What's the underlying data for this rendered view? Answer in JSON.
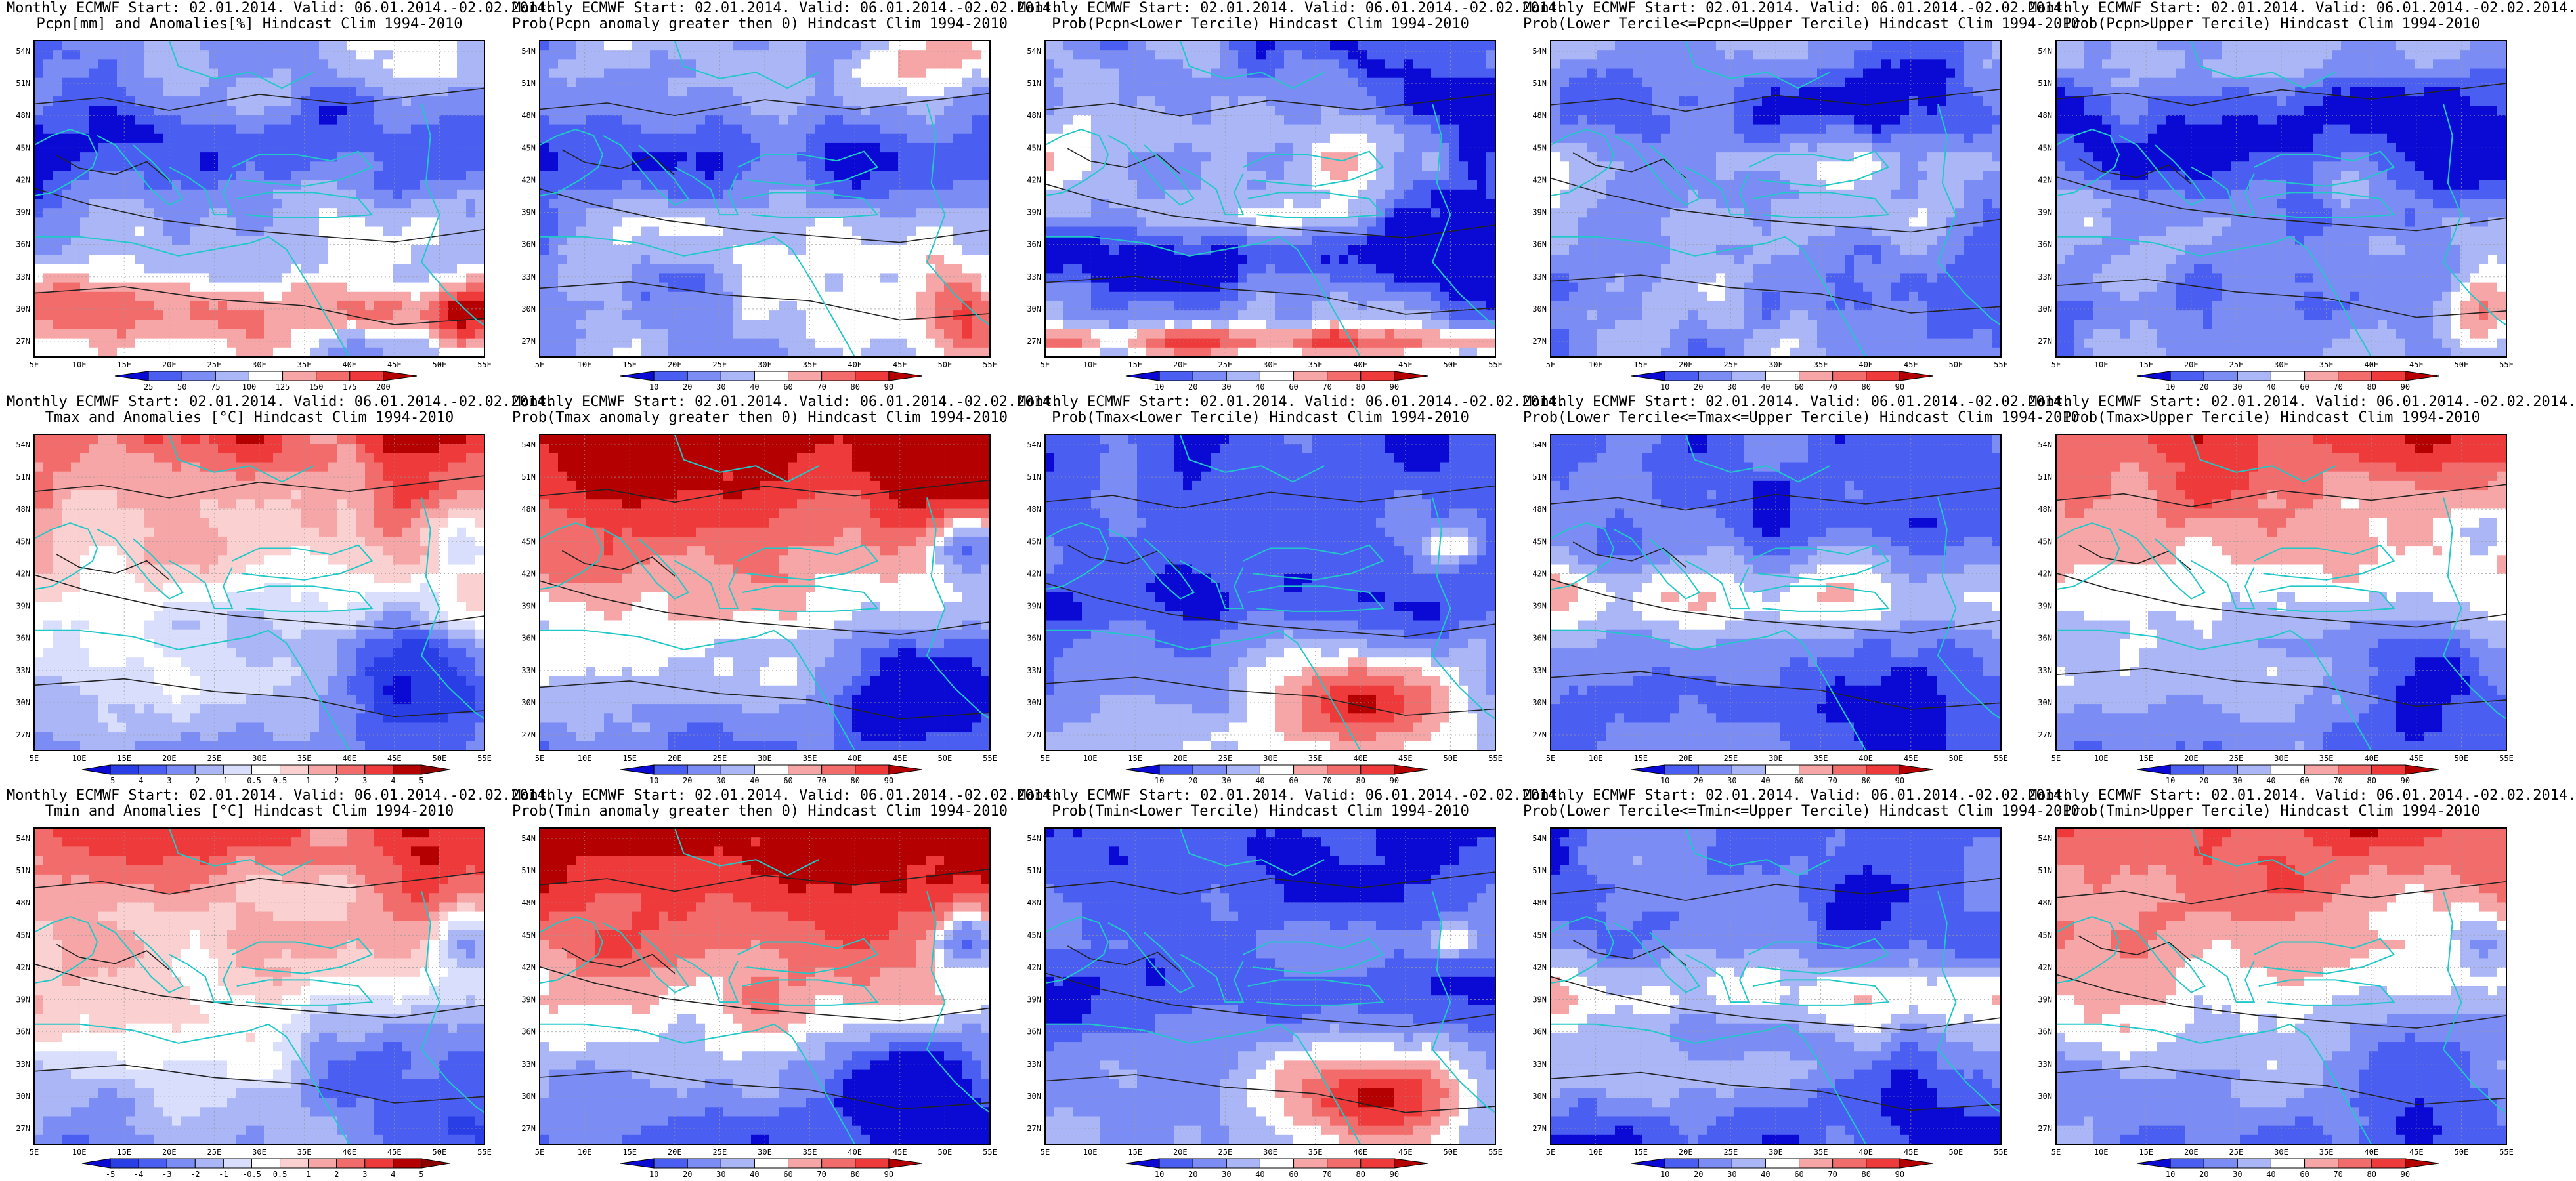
{
  "lat_labels": [
    "54N",
    "51N",
    "48N",
    "45N",
    "42N",
    "39N",
    "36N",
    "33N",
    "30N",
    "27N"
  ],
  "lon_labels": [
    "5E",
    "10E",
    "15E",
    "20E",
    "25E",
    "30E",
    "35E",
    "40E",
    "45E",
    "50E",
    "55E"
  ],
  "colors": {
    "blue_dark": "#0a0ad4",
    "blue_mid": "#4b5ef2",
    "blue_light": "#aab6f6",
    "white": "#ffffff",
    "red_light": "#f6a6a6",
    "red_mid": "#ee3a3a",
    "red_dark": "#b40000",
    "coast": "#22c8c8",
    "contour": "#222222"
  },
  "colorbars": {
    "pcpn_anom": [
      "25",
      "50",
      "75",
      "100",
      "125",
      "150",
      "175",
      "200"
    ],
    "prob": [
      "10",
      "20",
      "30",
      "40",
      "60",
      "70",
      "80",
      "90"
    ],
    "temp_anom": [
      "-5",
      "-4",
      "-3",
      "-2",
      "-1",
      "-0.5",
      "0.5",
      "1",
      "2",
      "3",
      "4",
      "5"
    ]
  },
  "panels": [
    {
      "title1": "Monthly ECMWF Start: 02.01.2014. Valid: 06.01.2014.-02.02.2014.",
      "title2": "Pcpn[mm] and Anomalies[%] Hindcast Clim 1994-2010",
      "colorbar": "pcpn_anom",
      "pattern": "pcpn_anom"
    },
    {
      "title1": "Monthly ECMWF Start: 02.01.2014. Valid: 06.01.2014.-02.02.2014.",
      "title2": "Prob(Pcpn anomaly greater then 0) Hindcast Clim 1994-2010",
      "colorbar": "prob",
      "pattern": "pcpn_pos"
    },
    {
      "title1": "Monthly ECMWF Start: 02.01.2014. Valid: 06.01.2014.-02.02.2014.",
      "title2": "Prob(Pcpn<Lower Tercile) Hindcast Clim 1994-2010",
      "colorbar": "prob",
      "pattern": "pcpn_low"
    },
    {
      "title1": "Monthly ECMWF Start: 02.01.2014. Valid: 06.01.2014.-02.02.2014.",
      "title2": "Prob(Lower Tercile<=Pcpn<=Upper Tercile) Hindcast Clim 1994-2010",
      "colorbar": "prob",
      "pattern": "pcpn_mid"
    },
    {
      "title1": "Monthly ECMWF Start: 02.01.2014. Valid: 06.01.2014.-02.02.2014.",
      "title2": "Prob(Pcpn>Upper Tercile) Hindcast Clim 1994-2010",
      "colorbar": "prob",
      "pattern": "pcpn_up"
    },
    {
      "title1": "Monthly ECMWF Start: 02.01.2014. Valid: 06.01.2014.-02.02.2014.",
      "title2": "Tmax and Anomalies [°C] Hindcast Clim 1994-2010",
      "colorbar": "temp_anom",
      "pattern": "warm_north"
    },
    {
      "title1": "Monthly ECMWF Start: 02.01.2014. Valid: 06.01.2014.-02.02.2014.",
      "title2": "Prob(Tmax anomaly greater then 0) Hindcast Clim 1994-2010",
      "colorbar": "prob",
      "pattern": "hot_north"
    },
    {
      "title1": "Monthly ECMWF Start: 02.01.2014. Valid: 06.01.2014.-02.02.2014.",
      "title2": "Prob(Tmax<Lower Tercile) Hindcast Clim 1994-2010",
      "colorbar": "prob",
      "pattern": "cold_north"
    },
    {
      "title1": "Monthly ECMWF Start: 02.01.2014. Valid: 06.01.2014.-02.02.2014.",
      "title2": "Prob(Lower Tercile<=Tmax<=Upper Tercile) Hindcast Clim 1994-2010",
      "colorbar": "prob",
      "pattern": "mid_band"
    },
    {
      "title1": "Monthly ECMWF Start: 02.01.2014. Valid: 06.01.2014.-02.02.2014.",
      "title2": "Prob(Tmax>Upper Tercile) Hindcast Clim 1994-2010",
      "colorbar": "prob",
      "pattern": "warm_north"
    },
    {
      "title1": "Monthly ECMWF Start: 02.01.2014. Valid: 06.01.2014.-02.02.2014.",
      "title2": "Tmin and Anomalies [°C] Hindcast Clim 1994-2010",
      "colorbar": "temp_anom",
      "pattern": "warm_north"
    },
    {
      "title1": "Monthly ECMWF Start: 02.01.2014. Valid: 06.01.2014.-02.02.2014.",
      "title2": "Prob(Tmin anomaly greater then 0) Hindcast Clim 1994-2010",
      "colorbar": "prob",
      "pattern": "hot_north"
    },
    {
      "title1": "Monthly ECMWF Start: 02.01.2014. Valid: 06.01.2014.-02.02.2014.",
      "title2": "Prob(Tmin<Lower Tercile) Hindcast Clim 1994-2010",
      "colorbar": "prob",
      "pattern": "cold_north"
    },
    {
      "title1": "Monthly ECMWF Start: 02.01.2014. Valid: 06.01.2014.-02.02.2014.",
      "title2": "Prob(Lower Tercile<=Tmin<=Upper Tercile) Hindcast Clim 1994-2010",
      "colorbar": "prob",
      "pattern": "mid_band"
    },
    {
      "title1": "Monthly ECMWF Start: 02.01.2014. Valid: 06.01.2014.-02.02.2014.",
      "title2": "Prob(Tmin>Upper Tercile) Hindcast Clim 1994-2010",
      "colorbar": "prob",
      "pattern": "warm_north"
    }
  ]
}
